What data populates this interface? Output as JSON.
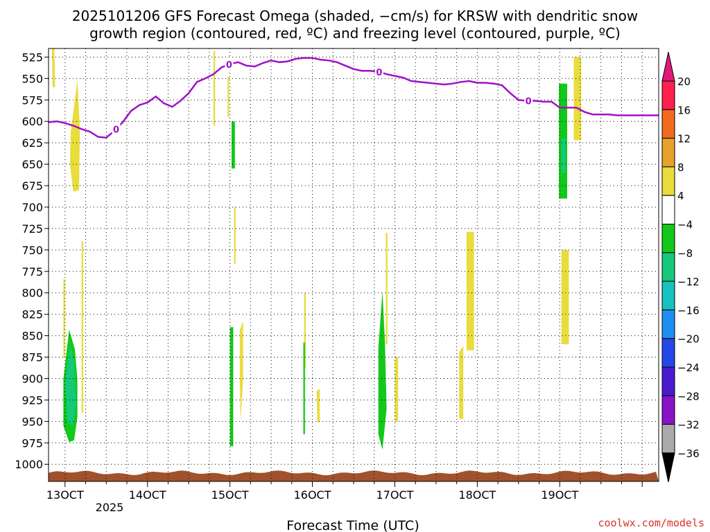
{
  "chart_data": {
    "type": "heatmap",
    "title_line1": "2025101206 GFS Forecast Omega (shaded, −cm/s) for KRSW with dendritic snow",
    "title_line2": "growth region (contoured, red, ºC) and freezing level (contoured, purple, ºC)",
    "xlabel": "Forecast Time (UTC)",
    "credit": "coolwx.com/models",
    "x_domain_days": [
      12.8,
      20.2
    ],
    "y_levels": [
      525,
      550,
      575,
      600,
      625,
      650,
      675,
      700,
      725,
      750,
      775,
      800,
      825,
      850,
      875,
      900,
      925,
      950,
      975,
      1000
    ],
    "y_range": [
      1020,
      515
    ],
    "x_ticks": [
      {
        "value": 13,
        "label": "13OCT"
      },
      {
        "value": 14,
        "label": "14OCT"
      },
      {
        "value": 15,
        "label": "15OCT"
      },
      {
        "value": 16,
        "label": "16OCT"
      },
      {
        "value": 17,
        "label": "17OCT"
      },
      {
        "value": 18,
        "label": "18OCT"
      },
      {
        "value": 19,
        "label": "19OCT"
      }
    ],
    "x_year_label": "2025",
    "grid": true,
    "colorbar": {
      "labels": [
        "20",
        "16",
        "12",
        "8",
        "4",
        "−4",
        "−8",
        "−12",
        "−16",
        "−20",
        "−24",
        "−28",
        "−32",
        "−36"
      ],
      "colors": [
        "#ff1f4f",
        "#f26b1d",
        "#e7a22a",
        "#e8dd3a",
        "#ffffff",
        "#12c81a",
        "#14c97a",
        "#16c2c0",
        "#1e8ff0",
        "#2448e6",
        "#4a1bd0",
        "#8a12c8",
        "#aaaaaa"
      ],
      "top_arrow_color": "#e11a7a",
      "bottom_arrow_color": "#000000"
    },
    "freezing_level": {
      "color": "#a010c8",
      "label": "0",
      "label_positions": [
        13.62,
        14.99,
        16.81,
        18.62
      ],
      "points": [
        [
          12.8,
          601
        ],
        [
          12.9,
          600
        ],
        [
          13.0,
          602
        ],
        [
          13.1,
          605
        ],
        [
          13.2,
          609
        ],
        [
          13.3,
          612
        ],
        [
          13.4,
          618
        ],
        [
          13.5,
          619
        ],
        [
          13.6,
          611
        ],
        [
          13.7,
          601
        ],
        [
          13.8,
          588
        ],
        [
          13.9,
          581
        ],
        [
          14.0,
          578
        ],
        [
          14.1,
          571
        ],
        [
          14.2,
          579
        ],
        [
          14.3,
          583
        ],
        [
          14.4,
          576
        ],
        [
          14.5,
          567
        ],
        [
          14.6,
          554
        ],
        [
          14.7,
          550
        ],
        [
          14.8,
          545
        ],
        [
          14.9,
          537
        ],
        [
          15.0,
          533
        ],
        [
          15.1,
          531
        ],
        [
          15.2,
          535
        ],
        [
          15.3,
          536
        ],
        [
          15.4,
          532
        ],
        [
          15.5,
          529
        ],
        [
          15.6,
          531
        ],
        [
          15.7,
          530
        ],
        [
          15.8,
          527
        ],
        [
          15.9,
          526
        ],
        [
          16.0,
          526
        ],
        [
          16.1,
          528
        ],
        [
          16.2,
          529
        ],
        [
          16.3,
          531
        ],
        [
          16.4,
          535
        ],
        [
          16.5,
          539
        ],
        [
          16.6,
          541
        ],
        [
          16.7,
          541
        ],
        [
          16.8,
          542
        ],
        [
          16.9,
          545
        ],
        [
          17.0,
          547
        ],
        [
          17.1,
          549
        ],
        [
          17.2,
          553
        ],
        [
          17.3,
          554
        ],
        [
          17.4,
          555
        ],
        [
          17.5,
          556
        ],
        [
          17.6,
          557
        ],
        [
          17.7,
          556
        ],
        [
          17.8,
          554
        ],
        [
          17.9,
          553
        ],
        [
          18.0,
          555
        ],
        [
          18.1,
          555
        ],
        [
          18.2,
          556
        ],
        [
          18.3,
          558
        ],
        [
          18.4,
          567
        ],
        [
          18.5,
          575
        ],
        [
          18.6,
          576
        ],
        [
          18.7,
          576
        ],
        [
          18.8,
          577
        ],
        [
          18.9,
          577
        ],
        [
          19.0,
          584
        ],
        [
          19.1,
          584
        ],
        [
          19.2,
          584
        ],
        [
          19.3,
          589
        ],
        [
          19.4,
          592
        ],
        [
          19.5,
          592
        ],
        [
          19.6,
          592
        ],
        [
          19.7,
          593
        ],
        [
          19.8,
          593
        ],
        [
          20.0,
          593
        ],
        [
          20.2,
          593
        ]
      ]
    },
    "shaded_regions": [
      {
        "category": "4",
        "color": "#e8dd3a",
        "points": [
          [
            12.84,
            513
          ],
          [
            12.87,
            513
          ],
          [
            12.88,
            560
          ],
          [
            12.85,
            560
          ]
        ]
      },
      {
        "category": "4",
        "color": "#e8dd3a",
        "points": [
          [
            13.07,
            612
          ],
          [
            13.15,
            552
          ],
          [
            13.18,
            610
          ],
          [
            13.17,
            680
          ],
          [
            13.1,
            682
          ],
          [
            13.06,
            650
          ]
        ]
      },
      {
        "category": "4",
        "color": "#e8dd3a",
        "points": [
          [
            13.2,
            740
          ],
          [
            13.22,
            740
          ],
          [
            13.22,
            940
          ],
          [
            13.2,
            940
          ]
        ]
      },
      {
        "category": "4",
        "color": "#e8dd3a",
        "points": [
          [
            12.98,
            784
          ],
          [
            13.0,
            784
          ],
          [
            13.0,
            876
          ],
          [
            12.98,
            876
          ]
        ]
      },
      {
        "category": "4",
        "color": "#e8dd3a",
        "points": [
          [
            14.8,
            518
          ],
          [
            14.82,
            518
          ],
          [
            14.82,
            605
          ],
          [
            14.8,
            605
          ]
        ]
      },
      {
        "category": "4",
        "color": "#e8dd3a",
        "points": [
          [
            14.97,
            548
          ],
          [
            14.99,
            548
          ],
          [
            14.99,
            595
          ],
          [
            14.97,
            595
          ]
        ]
      },
      {
        "category": "4",
        "color": "#e8dd3a",
        "points": [
          [
            15.05,
            700
          ],
          [
            15.07,
            700
          ],
          [
            15.07,
            766
          ],
          [
            15.05,
            766
          ]
        ]
      },
      {
        "category": "4",
        "color": "#e8dd3a",
        "points": [
          [
            15.12,
            843
          ],
          [
            15.16,
            833
          ],
          [
            15.16,
            900
          ],
          [
            15.13,
            950
          ],
          [
            15.12,
            905
          ]
        ]
      },
      {
        "category": "4",
        "color": "#e8dd3a",
        "points": [
          [
            15.9,
            800
          ],
          [
            15.92,
            800
          ],
          [
            15.92,
            888
          ],
          [
            15.9,
            888
          ]
        ]
      },
      {
        "category": "4",
        "color": "#e8dd3a",
        "points": [
          [
            16.05,
            915
          ],
          [
            16.09,
            912
          ],
          [
            16.09,
            950
          ],
          [
            16.06,
            952
          ]
        ]
      },
      {
        "category": "4",
        "color": "#e8dd3a",
        "points": [
          [
            16.89,
            730
          ],
          [
            16.91,
            730
          ],
          [
            16.91,
            860
          ],
          [
            16.89,
            860
          ]
        ]
      },
      {
        "category": "4",
        "color": "#e8dd3a",
        "points": [
          [
            17.0,
            875
          ],
          [
            17.04,
            875
          ],
          [
            17.04,
            950
          ],
          [
            17.0,
            950
          ]
        ]
      },
      {
        "category": "4",
        "color": "#e8dd3a",
        "points": [
          [
            17.78,
            869
          ],
          [
            17.83,
            862
          ],
          [
            17.83,
            947
          ],
          [
            17.78,
            947
          ]
        ]
      },
      {
        "category": "4",
        "color": "#e8dd3a",
        "points": [
          [
            17.87,
            729
          ],
          [
            17.96,
            729
          ],
          [
            17.96,
            867
          ],
          [
            17.87,
            867
          ]
        ]
      },
      {
        "category": "4",
        "color": "#e8dd3a",
        "points": [
          [
            19.02,
            750
          ],
          [
            19.11,
            750
          ],
          [
            19.11,
            860
          ],
          [
            19.02,
            860
          ]
        ]
      },
      {
        "category": "4",
        "color": "#e8dd3a",
        "points": [
          [
            19.17,
            525
          ],
          [
            19.26,
            525
          ],
          [
            19.26,
            622
          ],
          [
            19.17,
            622
          ]
        ]
      },
      {
        "category": "-4",
        "color": "#12c81a",
        "points": [
          [
            12.98,
            901
          ],
          [
            13.05,
            843
          ],
          [
            13.12,
            866
          ],
          [
            13.15,
            902
          ],
          [
            13.15,
            945
          ],
          [
            13.11,
            972
          ],
          [
            13.05,
            974
          ],
          [
            12.98,
            955
          ]
        ]
      },
      {
        "category": "-8",
        "color": "#14c97a",
        "points": [
          [
            13.0,
            905
          ],
          [
            13.06,
            860
          ],
          [
            13.11,
            880
          ],
          [
            13.13,
            930
          ],
          [
            13.1,
            955
          ],
          [
            13.03,
            952
          ]
        ]
      },
      {
        "category": "-4",
        "color": "#12c81a",
        "points": [
          [
            15.02,
            600
          ],
          [
            15.06,
            600
          ],
          [
            15.06,
            655
          ],
          [
            15.02,
            655
          ]
        ]
      },
      {
        "category": "-4",
        "color": "#12c81a",
        "points": [
          [
            15.0,
            840
          ],
          [
            15.04,
            840
          ],
          [
            15.04,
            979
          ],
          [
            15.0,
            979
          ]
        ]
      },
      {
        "category": "-4",
        "color": "#12c81a",
        "points": [
          [
            15.89,
            858
          ],
          [
            15.91,
            858
          ],
          [
            15.91,
            965
          ],
          [
            15.89,
            965
          ]
        ]
      },
      {
        "category": "-4",
        "color": "#12c81a",
        "points": [
          [
            16.8,
            864
          ],
          [
            16.85,
            798
          ],
          [
            16.88,
            858
          ],
          [
            16.9,
            935
          ],
          [
            16.85,
            983
          ],
          [
            16.8,
            965
          ]
        ]
      },
      {
        "category": "-4",
        "color": "#12c81a",
        "points": [
          [
            18.99,
            556
          ],
          [
            19.09,
            556
          ],
          [
            19.09,
            690
          ],
          [
            18.99,
            690
          ]
        ]
      },
      {
        "category": "-8",
        "color": "#14c97a",
        "points": [
          [
            19.02,
            620
          ],
          [
            19.07,
            620
          ],
          [
            19.07,
            660
          ],
          [
            19.02,
            660
          ]
        ]
      }
    ],
    "ground_color": "#a0522d"
  }
}
